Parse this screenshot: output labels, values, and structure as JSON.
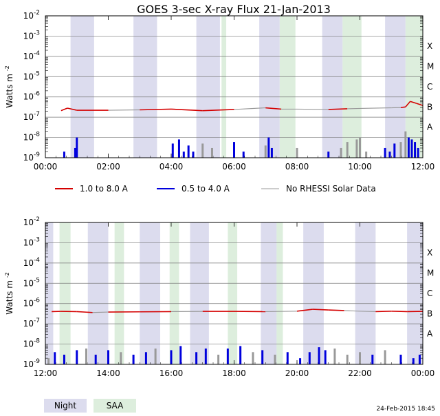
{
  "title": "GOES 3-sec X-ray Flux   21-Jan-2013",
  "ylabel": "Watts m",
  "ylabel_sup": "-2",
  "y_ticks": [
    {
      "base": "10",
      "exp": "-9"
    },
    {
      "base": "10",
      "exp": "-8"
    },
    {
      "base": "10",
      "exp": "-7"
    },
    {
      "base": "10",
      "exp": "-6"
    },
    {
      "base": "10",
      "exp": "-5"
    },
    {
      "base": "10",
      "exp": "-4"
    },
    {
      "base": "10",
      "exp": "-3"
    },
    {
      "base": "10",
      "exp": "-2"
    }
  ],
  "flare_classes": [
    "A",
    "B",
    "C",
    "M",
    "X"
  ],
  "legend": [
    {
      "label": "1.0 to 8.0 A",
      "color": "#d40000"
    },
    {
      "label": "0.5 to 4.0 A",
      "color": "#0000dd"
    },
    {
      "label": "No RHESSI Solar Data",
      "color": "#999999"
    }
  ],
  "bottom_legend": [
    {
      "label": "Night",
      "color": "#dcdcee"
    },
    {
      "label": "SAA",
      "color": "#ddeedd"
    }
  ],
  "footer_date": "24-Feb-2015 18:45",
  "chart_data": [
    {
      "type": "line",
      "name": "panel-1",
      "x_unit": "hours (UT)",
      "xlim": [
        0,
        12
      ],
      "ylim": [
        1e-09,
        0.01
      ],
      "yscale": "log",
      "x_tick_labels": [
        "00:00",
        "02:00",
        "04:00",
        "06:00",
        "08:00",
        "10:00",
        "12:00"
      ],
      "night": [
        [
          0.8,
          1.55
        ],
        [
          2.8,
          3.55
        ],
        [
          4.8,
          5.55
        ],
        [
          6.8,
          7.45
        ],
        [
          8.8,
          9.45
        ],
        [
          10.8,
          11.45
        ]
      ],
      "saa": [
        [
          5.6,
          5.75
        ],
        [
          7.45,
          7.95
        ],
        [
          9.45,
          10.05
        ],
        [
          11.45,
          12.0
        ]
      ],
      "long_flux": {
        "name": "1.0 to 8.0 A",
        "x": [
          0.5,
          0.7,
          1.0,
          2.0,
          3.0,
          4.0,
          5.0,
          6.0,
          7.0,
          7.5,
          8.0,
          9.0,
          9.6,
          10.0,
          11.0,
          11.3,
          11.45,
          11.6,
          11.8,
          12.0
        ],
        "y": [
          2.1e-07,
          2.8e-07,
          2.2e-07,
          2.2e-07,
          2.3e-07,
          2.5e-07,
          2.1e-07,
          2.4e-07,
          2.9e-07,
          2.5e-07,
          2.5e-07,
          2.4e-07,
          2.6e-07,
          2.7e-07,
          2.9e-07,
          3e-07,
          3.2e-07,
          6e-07,
          4.8e-07,
          3.8e-07
        ],
        "no_rhessi": [
          [
            2.3,
            3.3
          ],
          [
            6.2,
            7.0
          ],
          [
            7.5,
            9.0
          ],
          [
            9.6,
            11.3
          ]
        ]
      },
      "short_flux_bursts": [
        {
          "x": 0.55,
          "y": 1e-09,
          "lab": "blue"
        },
        {
          "x": 0.6,
          "y": 2e-09,
          "lab": "blue"
        },
        {
          "x": 0.95,
          "y": 3e-09,
          "lab": "blue"
        },
        {
          "x": 1.0,
          "y": 1e-08,
          "lab": "blue"
        },
        {
          "x": 4.05,
          "y": 5e-09,
          "lab": "blue"
        },
        {
          "x": 4.25,
          "y": 8e-09,
          "lab": "blue"
        },
        {
          "x": 4.4,
          "y": 2e-09,
          "lab": "blue"
        },
        {
          "x": 4.55,
          "y": 4e-09,
          "lab": "blue"
        },
        {
          "x": 4.7,
          "y": 2e-09,
          "lab": "blue"
        },
        {
          "x": 5.0,
          "y": 5e-09,
          "lab": "gray"
        },
        {
          "x": 5.3,
          "y": 3e-09,
          "lab": "gray"
        },
        {
          "x": 6.0,
          "y": 6e-09,
          "lab": "blue"
        },
        {
          "x": 6.3,
          "y": 2e-09,
          "lab": "blue"
        },
        {
          "x": 7.0,
          "y": 4e-09,
          "lab": "gray"
        },
        {
          "x": 7.1,
          "y": 1e-08,
          "lab": "blue"
        },
        {
          "x": 7.2,
          "y": 3e-09,
          "lab": "blue"
        },
        {
          "x": 8.0,
          "y": 3e-09,
          "lab": "gray"
        },
        {
          "x": 9.0,
          "y": 2e-09,
          "lab": "blue"
        },
        {
          "x": 9.4,
          "y": 3e-09,
          "lab": "gray"
        },
        {
          "x": 9.6,
          "y": 6e-09,
          "lab": "gray"
        },
        {
          "x": 9.9,
          "y": 8e-09,
          "lab": "gray"
        },
        {
          "x": 10.0,
          "y": 1e-08,
          "lab": "gray"
        },
        {
          "x": 10.2,
          "y": 2e-09,
          "lab": "gray"
        },
        {
          "x": 10.8,
          "y": 3e-09,
          "lab": "blue"
        },
        {
          "x": 10.95,
          "y": 2e-09,
          "lab": "blue"
        },
        {
          "x": 11.1,
          "y": 5e-09,
          "lab": "blue"
        },
        {
          "x": 11.3,
          "y": 6e-09,
          "lab": "gray"
        },
        {
          "x": 11.45,
          "y": 2e-08,
          "lab": "gray"
        },
        {
          "x": 11.55,
          "y": 1e-08,
          "lab": "blue"
        },
        {
          "x": 11.65,
          "y": 8e-09,
          "lab": "blue"
        },
        {
          "x": 11.75,
          "y": 6e-09,
          "lab": "blue"
        },
        {
          "x": 11.85,
          "y": 3e-09,
          "lab": "blue"
        }
      ]
    },
    {
      "type": "line",
      "name": "panel-2",
      "x_unit": "hours (UT)",
      "xlim": [
        12,
        24
      ],
      "ylim": [
        1e-09,
        0.01
      ],
      "yscale": "log",
      "x_tick_labels": [
        "12:00",
        "14:00",
        "16:00",
        "18:00",
        "20:00",
        "22:00",
        "00:00"
      ],
      "night": [
        [
          12.0,
          12.25
        ],
        [
          13.35,
          14.0
        ],
        [
          15.0,
          15.65
        ],
        [
          16.6,
          17.2
        ],
        [
          18.85,
          19.4
        ],
        [
          20.2,
          20.85
        ],
        [
          21.85,
          22.5
        ],
        [
          23.5,
          24.0
        ]
      ],
      "saa": [
        [
          12.45,
          12.8
        ],
        [
          14.2,
          14.5
        ],
        [
          15.95,
          16.25
        ],
        [
          17.8,
          18.1
        ],
        [
          19.35,
          19.55
        ]
      ],
      "long_flux": {
        "name": "1.0 to 8.0 A",
        "x": [
          12.2,
          12.5,
          13.0,
          13.5,
          14.0,
          15.0,
          16.0,
          17.0,
          18.0,
          19.0,
          20.0,
          20.5,
          21.0,
          21.5,
          22.0,
          22.5,
          23.0,
          23.5,
          24.0
        ],
        "y": [
          4e-07,
          4.1e-07,
          4e-07,
          3.6e-07,
          3.8e-07,
          3.9e-07,
          4e-07,
          4.1e-07,
          4.1e-07,
          4e-07,
          4.2e-07,
          5.2e-07,
          4.8e-07,
          4.5e-07,
          4.2e-07,
          4e-07,
          4.2e-07,
          4e-07,
          4.1e-07
        ],
        "no_rhessi": [
          [
            13.6,
            14.1
          ],
          [
            16.5,
            17.3
          ],
          [
            18.7,
            19.8
          ],
          [
            21.4,
            22.6
          ]
        ]
      },
      "short_flux_bursts": [
        {
          "x": 12.1,
          "y": 2e-09,
          "lab": "gray"
        },
        {
          "x": 12.3,
          "y": 4e-09,
          "lab": "blue"
        },
        {
          "x": 12.6,
          "y": 3e-09,
          "lab": "blue"
        },
        {
          "x": 13.0,
          "y": 5e-09,
          "lab": "blue"
        },
        {
          "x": 13.3,
          "y": 6e-09,
          "lab": "gray"
        },
        {
          "x": 13.6,
          "y": 3e-09,
          "lab": "blue"
        },
        {
          "x": 14.0,
          "y": 5e-09,
          "lab": "blue"
        },
        {
          "x": 14.4,
          "y": 4e-09,
          "lab": "gray"
        },
        {
          "x": 14.8,
          "y": 3e-09,
          "lab": "blue"
        },
        {
          "x": 15.2,
          "y": 4e-09,
          "lab": "blue"
        },
        {
          "x": 15.5,
          "y": 6e-09,
          "lab": "gray"
        },
        {
          "x": 16.0,
          "y": 5e-09,
          "lab": "blue"
        },
        {
          "x": 16.3,
          "y": 8e-09,
          "lab": "blue"
        },
        {
          "x": 16.8,
          "y": 4e-09,
          "lab": "blue"
        },
        {
          "x": 17.1,
          "y": 6e-09,
          "lab": "blue"
        },
        {
          "x": 17.5,
          "y": 3e-09,
          "lab": "gray"
        },
        {
          "x": 17.8,
          "y": 6e-09,
          "lab": "blue"
        },
        {
          "x": 18.2,
          "y": 8e-09,
          "lab": "blue"
        },
        {
          "x": 18.6,
          "y": 4e-09,
          "lab": "gray"
        },
        {
          "x": 18.9,
          "y": 5e-09,
          "lab": "blue"
        },
        {
          "x": 19.3,
          "y": 3e-09,
          "lab": "gray"
        },
        {
          "x": 19.7,
          "y": 4e-09,
          "lab": "blue"
        },
        {
          "x": 20.1,
          "y": 2e-09,
          "lab": "blue"
        },
        {
          "x": 20.4,
          "y": 4e-09,
          "lab": "blue"
        },
        {
          "x": 20.7,
          "y": 7e-09,
          "lab": "blue"
        },
        {
          "x": 20.9,
          "y": 5e-09,
          "lab": "blue"
        },
        {
          "x": 21.2,
          "y": 6e-09,
          "lab": "gray"
        },
        {
          "x": 21.6,
          "y": 3e-09,
          "lab": "gray"
        },
        {
          "x": 22.0,
          "y": 4e-09,
          "lab": "gray"
        },
        {
          "x": 22.4,
          "y": 3e-09,
          "lab": "blue"
        },
        {
          "x": 22.8,
          "y": 5e-09,
          "lab": "gray"
        },
        {
          "x": 23.3,
          "y": 3e-09,
          "lab": "blue"
        },
        {
          "x": 23.7,
          "y": 2e-09,
          "lab": "blue"
        },
        {
          "x": 23.9,
          "y": 3e-09,
          "lab": "blue"
        }
      ]
    }
  ]
}
